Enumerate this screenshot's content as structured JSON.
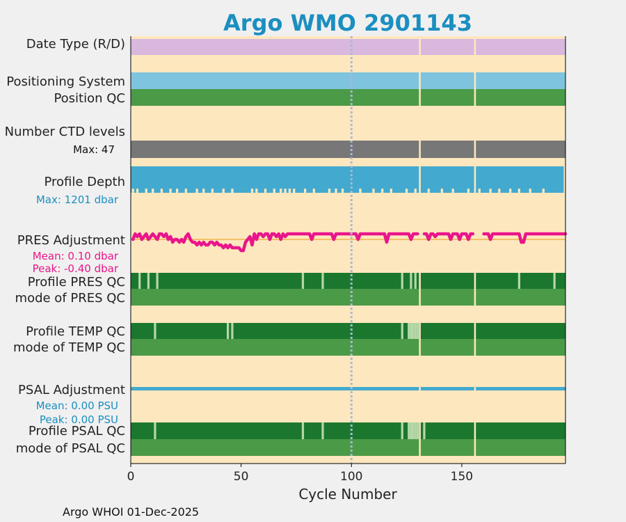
{
  "chart_data": {
    "type": "bar",
    "title": "Argo WMO 2901143",
    "xlabel": "Cycle Number",
    "xlim": [
      0,
      197
    ],
    "xticks": [
      0,
      50,
      100,
      150
    ],
    "vline_cycle": 100,
    "gaps": [
      131,
      156
    ],
    "footer": "Argo WHOI 01-Dec-2025",
    "rows": {
      "date_type": "Date Type (R/D)",
      "positioning": "Positioning System",
      "position_qc": "Position QC",
      "n_levels": "Number CTD levels",
      "n_levels_max": "Max: 47",
      "profile_depth": "Profile Depth",
      "profile_depth_max": "Max: 1201 dbar",
      "pres_adj": "PRES Adjustment",
      "pres_adj_mean": "Mean: 0.10 dbar",
      "pres_adj_peak": "Peak: -0.40 dbar",
      "profile_pres_qc": "Profile PRES QC",
      "mode_pres_qc": "mode of PRES QC",
      "profile_temp_qc": "Profile TEMP QC",
      "mode_temp_qc": "mode of TEMP QC",
      "psal_adj": "PSAL Adjustment",
      "psal_adj_mean": "Mean: 0.00 PSU",
      "psal_adj_peak": "Peak: 0.00 PSU",
      "profile_psal_qc": "Profile PSAL QC",
      "mode_psal_qc": "mode of PSAL QC"
    },
    "pres_qc_light_cycles": [
      4,
      8,
      12,
      78,
      87,
      123,
      127,
      129,
      176,
      192
    ],
    "temp_qc_light_cycles": [
      11,
      44,
      46,
      123,
      126,
      127,
      128,
      129,
      130
    ],
    "psal_qc_light_cycles": [
      11,
      78,
      87,
      123,
      126,
      127,
      128,
      129,
      130,
      133
    ],
    "depth_short_cycles": [
      1,
      3,
      7,
      10,
      14,
      18,
      21,
      25,
      30,
      33,
      37,
      42,
      46,
      55,
      57,
      61,
      65,
      68,
      70,
      72,
      74,
      79,
      83,
      90,
      93,
      96,
      104,
      110,
      114,
      118,
      125,
      129,
      135,
      141,
      146,
      153,
      158,
      163,
      167,
      172,
      176,
      181,
      187
    ],
    "pres_adjustment": [
      [
        1,
        0.0
      ],
      [
        2,
        0.2
      ],
      [
        3,
        0.1
      ],
      [
        4,
        0.2
      ],
      [
        5,
        0.0
      ],
      [
        6,
        0.1
      ],
      [
        7,
        0.2
      ],
      [
        8,
        0.0
      ],
      [
        9,
        0.1
      ],
      [
        10,
        0.2
      ],
      [
        11,
        0.1
      ],
      [
        12,
        0.0
      ],
      [
        13,
        0.2
      ],
      [
        14,
        0.2
      ],
      [
        15,
        0.1
      ],
      [
        16,
        0.2
      ],
      [
        17,
        0.0
      ],
      [
        18,
        0.1
      ],
      [
        19,
        -0.1
      ],
      [
        20,
        0.0
      ],
      [
        21,
        0.0
      ],
      [
        22,
        -0.1
      ],
      [
        23,
        0.0
      ],
      [
        24,
        -0.1
      ],
      [
        25,
        0.1
      ],
      [
        26,
        0.2
      ],
      [
        27,
        0.0
      ],
      [
        28,
        -0.1
      ],
      [
        29,
        -0.1
      ],
      [
        30,
        -0.2
      ],
      [
        31,
        -0.1
      ],
      [
        32,
        -0.2
      ],
      [
        33,
        -0.1
      ],
      [
        34,
        -0.2
      ],
      [
        35,
        -0.2
      ],
      [
        36,
        -0.1
      ],
      [
        37,
        -0.1
      ],
      [
        38,
        -0.2
      ],
      [
        39,
        -0.1
      ],
      [
        40,
        -0.2
      ],
      [
        41,
        -0.2
      ],
      [
        42,
        -0.3
      ],
      [
        43,
        -0.2
      ],
      [
        44,
        -0.3
      ],
      [
        45,
        -0.2
      ],
      [
        46,
        -0.3
      ],
      [
        47,
        -0.3
      ],
      [
        48,
        -0.3
      ],
      [
        49,
        -0.3
      ],
      [
        50,
        -0.4
      ],
      [
        51,
        -0.4
      ],
      [
        52,
        -0.1
      ],
      [
        53,
        0.0
      ],
      [
        54,
        0.1
      ],
      [
        55,
        -0.2
      ],
      [
        56,
        0.2
      ],
      [
        57,
        0.0
      ],
      [
        58,
        0.2
      ],
      [
        59,
        0.2
      ],
      [
        60,
        0.1
      ],
      [
        61,
        0.2
      ],
      [
        62,
        0.2
      ],
      [
        63,
        0.0
      ],
      [
        64,
        0.2
      ],
      [
        65,
        0.2
      ],
      [
        66,
        0.1
      ],
      [
        67,
        0.2
      ],
      [
        68,
        0.0
      ],
      [
        69,
        0.2
      ],
      [
        70,
        0.1
      ],
      [
        71,
        0.2
      ],
      [
        72,
        0.2
      ],
      [
        73,
        0.2
      ],
      [
        74,
        0.2
      ],
      [
        75,
        0.2
      ],
      [
        76,
        0.2
      ],
      [
        77,
        0.2
      ],
      [
        78,
        0.2
      ],
      [
        79,
        0.2
      ],
      [
        80,
        0.2
      ],
      [
        81,
        0.2
      ],
      [
        82,
        0.0
      ],
      [
        83,
        0.2
      ],
      [
        84,
        0.2
      ],
      [
        85,
        0.2
      ],
      [
        86,
        0.2
      ],
      [
        87,
        0.2
      ],
      [
        88,
        0.2
      ],
      [
        89,
        0.2
      ],
      [
        90,
        0.2
      ],
      [
        91,
        0.2
      ],
      [
        92,
        0.0
      ],
      [
        93,
        0.2
      ],
      [
        94,
        0.2
      ],
      [
        95,
        0.2
      ],
      [
        96,
        0.2
      ],
      [
        97,
        0.2
      ],
      [
        98,
        0.2
      ],
      [
        99,
        0.2
      ],
      [
        100,
        0.2
      ],
      [
        101,
        0.2
      ],
      [
        102,
        0.2
      ],
      [
        103,
        0.0
      ],
      [
        104,
        0.2
      ],
      [
        105,
        0.2
      ],
      [
        106,
        0.2
      ],
      [
        107,
        0.2
      ],
      [
        108,
        0.2
      ],
      [
        109,
        0.2
      ],
      [
        110,
        0.2
      ],
      [
        111,
        0.2
      ],
      [
        112,
        0.2
      ],
      [
        113,
        0.2
      ],
      [
        114,
        0.2
      ],
      [
        115,
        0.2
      ],
      [
        116,
        -0.1
      ],
      [
        117,
        0.2
      ],
      [
        118,
        0.2
      ],
      [
        119,
        0.2
      ],
      [
        120,
        0.2
      ],
      [
        121,
        0.2
      ],
      [
        122,
        0.2
      ],
      [
        123,
        0.2
      ],
      [
        124,
        0.2
      ],
      [
        125,
        0.2
      ],
      [
        126,
        0.2
      ],
      [
        127,
        0.0
      ],
      [
        128,
        0.2
      ],
      [
        129,
        0.2
      ],
      [
        130,
        0.2
      ],
      [
        133,
        0.2
      ],
      [
        134,
        0.2
      ],
      [
        135,
        0.0
      ],
      [
        136,
        0.2
      ],
      [
        137,
        0.2
      ],
      [
        138,
        0.1
      ],
      [
        139,
        0.2
      ],
      [
        140,
        0.2
      ],
      [
        141,
        0.2
      ],
      [
        142,
        0.2
      ],
      [
        143,
        0.2
      ],
      [
        144,
        0.2
      ],
      [
        145,
        0.0
      ],
      [
        146,
        0.2
      ],
      [
        147,
        0.2
      ],
      [
        148,
        0.2
      ],
      [
        149,
        0.0
      ],
      [
        150,
        0.2
      ],
      [
        151,
        0.2
      ],
      [
        152,
        0.2
      ],
      [
        153,
        0.0
      ],
      [
        154,
        0.2
      ],
      [
        155,
        0.2
      ],
      [
        160,
        0.2
      ],
      [
        161,
        0.2
      ],
      [
        162,
        0.2
      ],
      [
        163,
        0.0
      ],
      [
        164,
        0.2
      ],
      [
        165,
        0.2
      ],
      [
        166,
        0.2
      ],
      [
        167,
        0.2
      ],
      [
        168,
        0.2
      ],
      [
        169,
        0.2
      ],
      [
        170,
        0.2
      ],
      [
        171,
        0.2
      ],
      [
        172,
        0.2
      ],
      [
        173,
        0.2
      ],
      [
        174,
        0.2
      ],
      [
        175,
        0.2
      ],
      [
        176,
        0.2
      ],
      [
        177,
        -0.1
      ],
      [
        178,
        -0.1
      ],
      [
        179,
        0.2
      ],
      [
        180,
        0.2
      ],
      [
        181,
        0.2
      ],
      [
        182,
        0.2
      ],
      [
        183,
        0.2
      ],
      [
        184,
        0.2
      ],
      [
        185,
        0.2
      ],
      [
        186,
        0.2
      ],
      [
        187,
        0.2
      ],
      [
        188,
        0.2
      ],
      [
        189,
        0.2
      ],
      [
        190,
        0.2
      ],
      [
        191,
        0.2
      ],
      [
        192,
        0.2
      ],
      [
        193,
        0.2
      ],
      [
        194,
        0.2
      ],
      [
        195,
        0.2
      ],
      [
        196,
        0.2
      ],
      [
        197,
        0.2
      ]
    ],
    "colors": {
      "background": "#fde7bf",
      "date_type": "#d8b9dd",
      "positioning": "#7ec4de",
      "qc_good": "#4a9a48",
      "qc_dark": "#1a772d",
      "qc_light": "#b6d8a8",
      "levels": "#777777",
      "depth": "#44a9ce",
      "pres_adj": "#e8168a",
      "psal_adj": "#44a9ce",
      "zero_line": "#f0b44e",
      "title": "#1a8fc0",
      "vline": "#aab8d8"
    }
  }
}
